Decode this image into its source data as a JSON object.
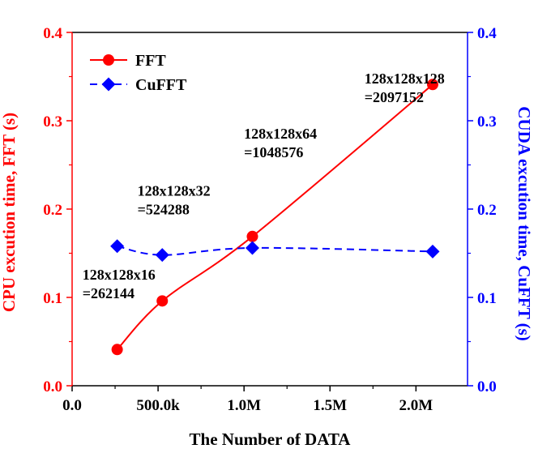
{
  "chart_data": {
    "type": "line",
    "xlabel": "The Number of DATA",
    "ylabel_left": "CPU excution time, FFT (s)",
    "ylabel_right": "CUDA excution time, CuFFT (s)",
    "xlim": [
      0,
      2300000
    ],
    "ylim_left": [
      0,
      0.4
    ],
    "ylim_right": [
      0,
      0.4
    ],
    "x_ticks": [
      {
        "value": 0,
        "label": "0.0"
      },
      {
        "value": 500000,
        "label": "500.0k"
      },
      {
        "value": 1000000,
        "label": "1.0M"
      },
      {
        "value": 1500000,
        "label": "1.5M"
      },
      {
        "value": 2000000,
        "label": "2.0M"
      }
    ],
    "y_ticks_left": [
      {
        "value": 0,
        "label": "0.0"
      },
      {
        "value": 0.1,
        "label": "0.1"
      },
      {
        "value": 0.2,
        "label": "0.2"
      },
      {
        "value": 0.3,
        "label": "0.3"
      },
      {
        "value": 0.4,
        "label": "0.4"
      }
    ],
    "y_ticks_right": [
      {
        "value": 0,
        "label": "0.0"
      },
      {
        "value": 0.1,
        "label": "0.1"
      },
      {
        "value": 0.2,
        "label": "0.2"
      },
      {
        "value": 0.3,
        "label": "0.3"
      },
      {
        "value": 0.4,
        "label": "0.4"
      }
    ],
    "series": [
      {
        "name": "FFT",
        "axis": "left",
        "color": "#ff0000",
        "marker": "circle",
        "line": "solid",
        "x": [
          262144,
          524288,
          1048576,
          2097152
        ],
        "y": [
          0.041,
          0.096,
          0.169,
          0.341
        ]
      },
      {
        "name": "CuFFT",
        "axis": "right",
        "color": "#0000ff",
        "marker": "diamond",
        "line": "dashed",
        "x": [
          262144,
          524288,
          1048576,
          2097152
        ],
        "y": [
          0.158,
          0.148,
          0.156,
          0.152
        ]
      }
    ],
    "legend": {
      "placement": "top-left",
      "items": [
        "FFT",
        "CuFFT"
      ]
    },
    "annotations": [
      {
        "lines": [
          "128x128x16",
          "=262144"
        ],
        "x": 60000,
        "y": 0.12
      },
      {
        "lines": [
          "128x128x32",
          "=524288"
        ],
        "x": 380000,
        "y": 0.215
      },
      {
        "lines": [
          "128x128x64",
          "=1048576"
        ],
        "x": 1000000,
        "y": 0.28
      },
      {
        "lines": [
          "128x128x128",
          "=2097152"
        ],
        "x": 1700000,
        "y": 0.342
      }
    ],
    "grid": false,
    "colors": {
      "left_axis": "#ff0000",
      "right_axis": "#0000ff",
      "x_axis": "#000000"
    }
  }
}
